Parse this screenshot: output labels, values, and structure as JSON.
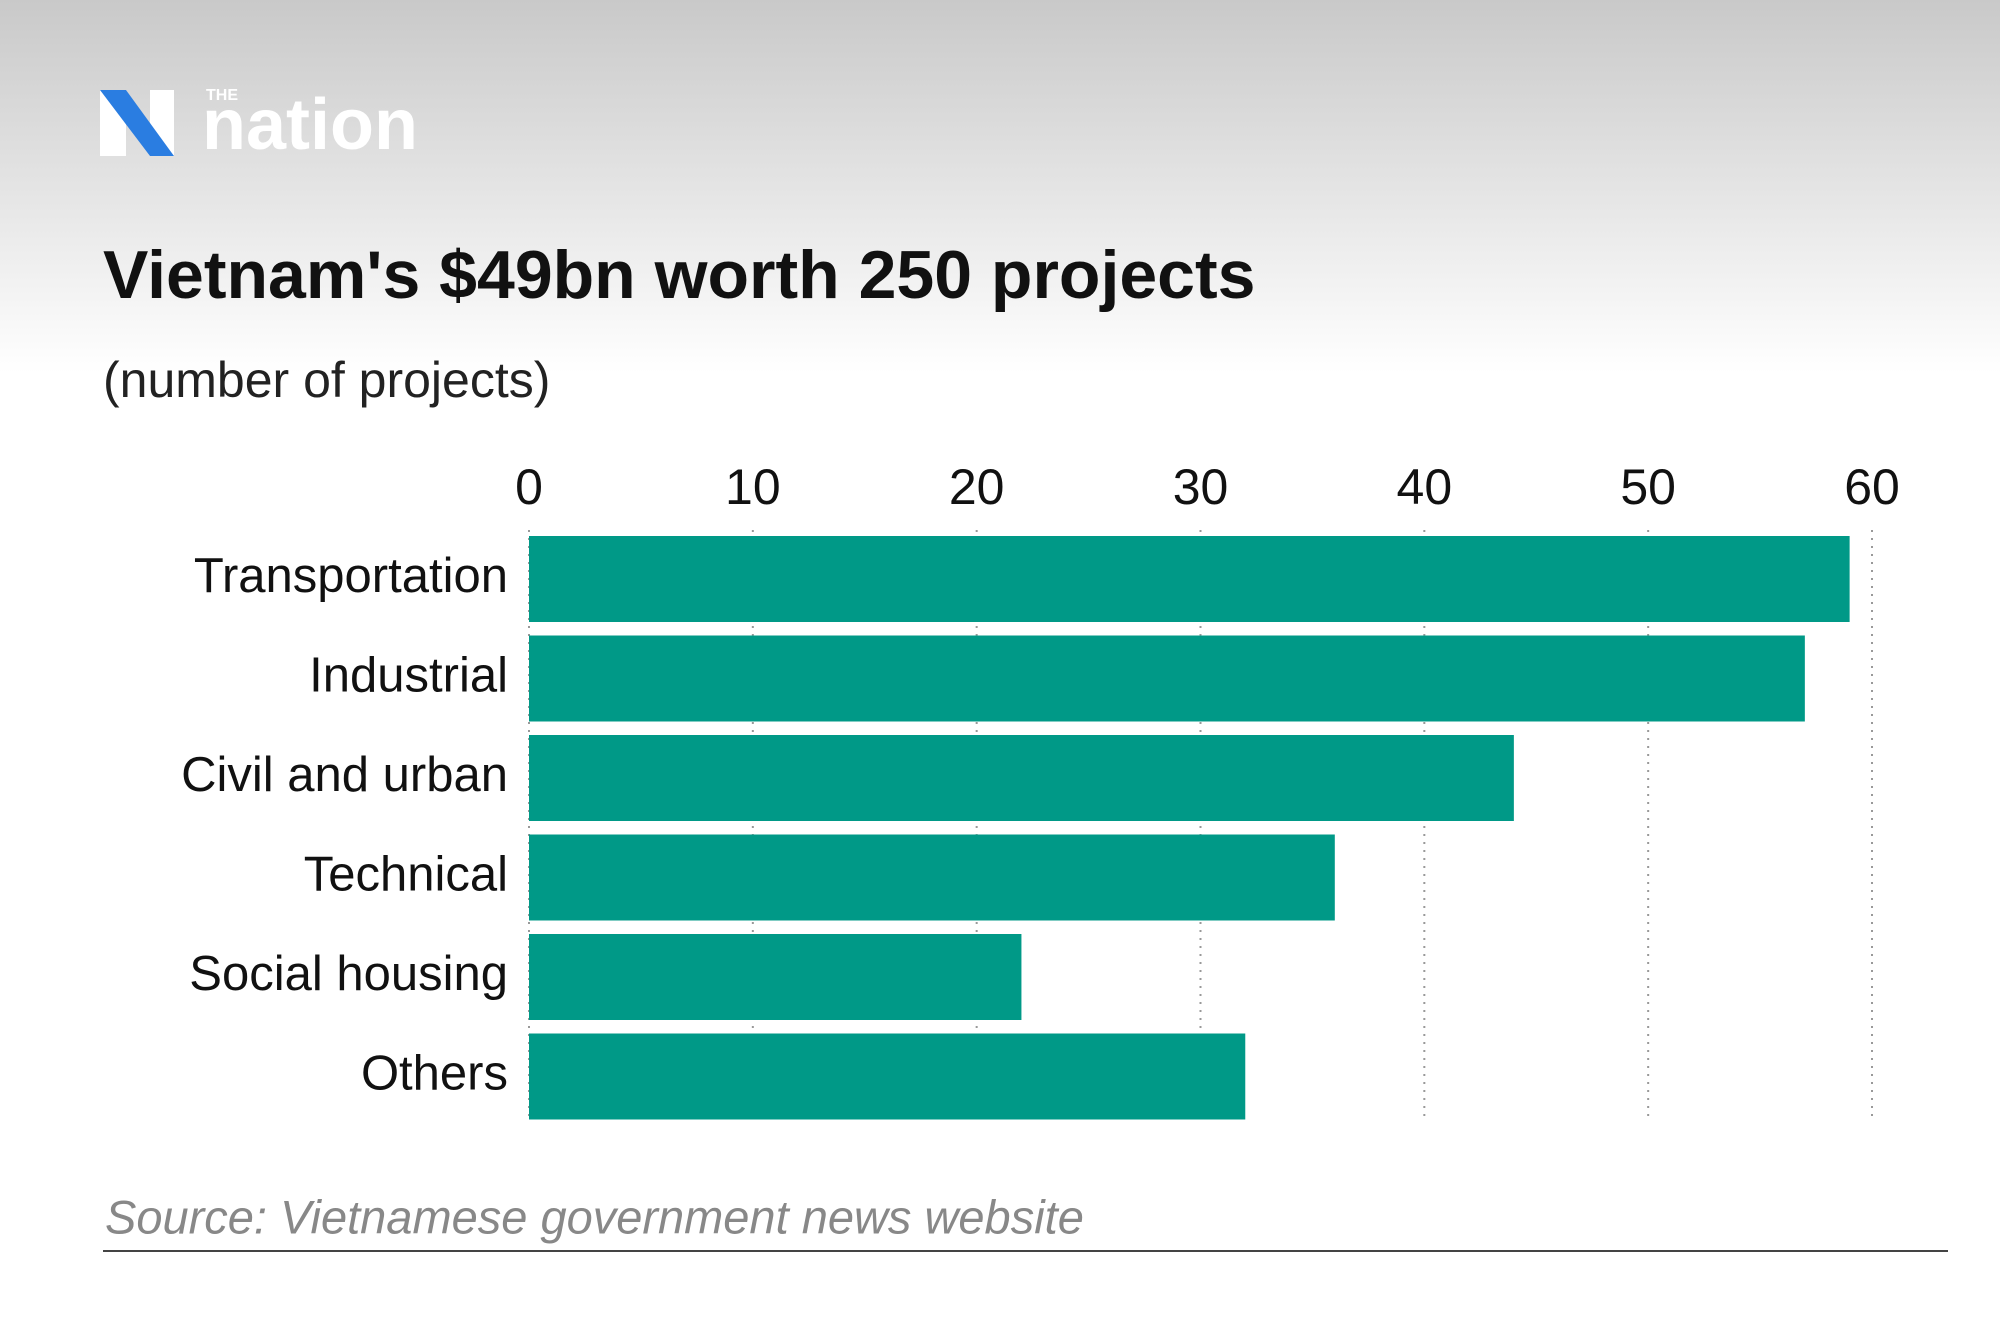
{
  "brand": {
    "small": "THE",
    "name": "nation"
  },
  "chart_data": {
    "type": "hbar",
    "title": "Vietnam's $49bn worth 250 projects",
    "subtitle": "(number of projects)",
    "source": "Source: Vietnamese government news website",
    "categories": [
      "Transportation",
      "Industrial",
      "Civil and urban",
      "Technical",
      "Social housing",
      "Others"
    ],
    "values": [
      59,
      57,
      44,
      36,
      22,
      32
    ],
    "color": "#009987",
    "xlim": [
      0,
      60
    ],
    "xticks": [
      0,
      10,
      20,
      30,
      40,
      50,
      60
    ],
    "grid": true
  }
}
